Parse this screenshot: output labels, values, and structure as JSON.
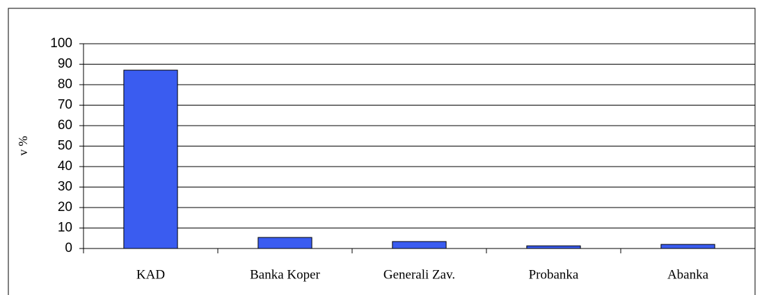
{
  "chart_data": {
    "type": "bar",
    "y_label": "v %",
    "categories": [
      "KAD",
      "Banka Koper",
      "Generali Zav.",
      "Probanka",
      "Abanka"
    ],
    "values": [
      87.1,
      5.4,
      3.4,
      1.3,
      2
    ],
    "color": "#3a5cf0",
    "ylim": [
      0,
      100
    ],
    "yticks": [
      0,
      10,
      20,
      30,
      40,
      50,
      60,
      70,
      80,
      90,
      100
    ],
    "grid": true
  }
}
